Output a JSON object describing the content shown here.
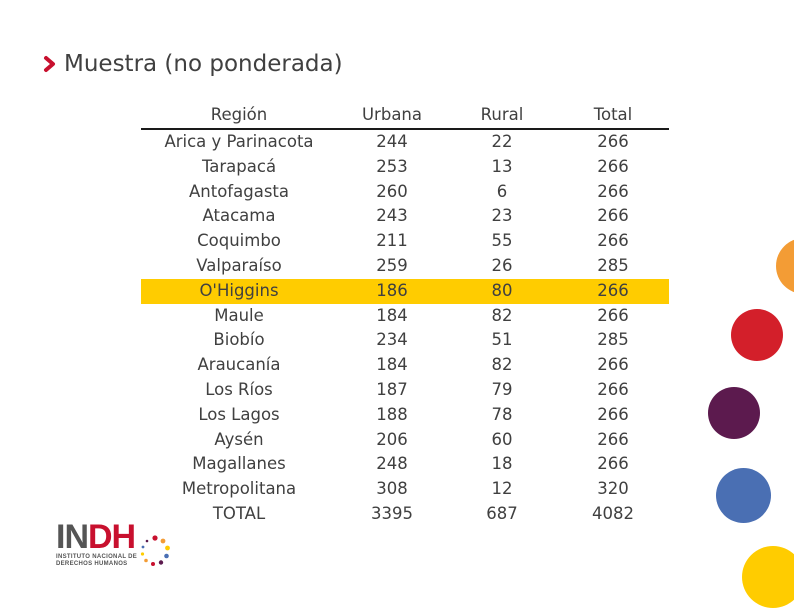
{
  "slide": {
    "title": "Muestra (no ponderada)"
  },
  "table": {
    "headers": [
      "Región",
      "Urbana",
      "Rural",
      "Total"
    ],
    "highlight_row": 6,
    "highlight_color": "#ffcc00",
    "rows": [
      [
        "Arica y Parinacota",
        "244",
        "22",
        "266"
      ],
      [
        "Tarapacá",
        "253",
        "13",
        "266"
      ],
      [
        "Antofagasta",
        "260",
        "6",
        "266"
      ],
      [
        "Atacama",
        "243",
        "23",
        "266"
      ],
      [
        "Coquimbo",
        "211",
        "55",
        "266"
      ],
      [
        "Valparaíso",
        "259",
        "26",
        "285"
      ],
      [
        "O'Higgins",
        "186",
        "80",
        "266"
      ],
      [
        "Maule",
        "184",
        "82",
        "266"
      ],
      [
        "Biobío",
        "234",
        "51",
        "285"
      ],
      [
        "Araucanía",
        "184",
        "82",
        "266"
      ],
      [
        "Los Ríos",
        "187",
        "79",
        "266"
      ],
      [
        "Los Lagos",
        "188",
        "78",
        "266"
      ],
      [
        "Aysén",
        "206",
        "60",
        "266"
      ],
      [
        "Magallanes",
        "248",
        "18",
        "266"
      ],
      [
        "Metropolitana",
        "308",
        "12",
        "320"
      ],
      [
        "TOTAL",
        "3395",
        "687",
        "4082"
      ]
    ]
  },
  "logo": {
    "main_prefix": "IN",
    "main_suffix": "DH",
    "line1": "INSTITUTO NACIONAL DE",
    "line2": "DERECHOS HUMANOS"
  },
  "colors": {
    "accent_red": "#c8102e",
    "orange": "#f39c35",
    "red": "#d31f2a",
    "purple": "#5c1a4e",
    "blue": "#4a6fb3",
    "yellow": "#ffcc00"
  }
}
